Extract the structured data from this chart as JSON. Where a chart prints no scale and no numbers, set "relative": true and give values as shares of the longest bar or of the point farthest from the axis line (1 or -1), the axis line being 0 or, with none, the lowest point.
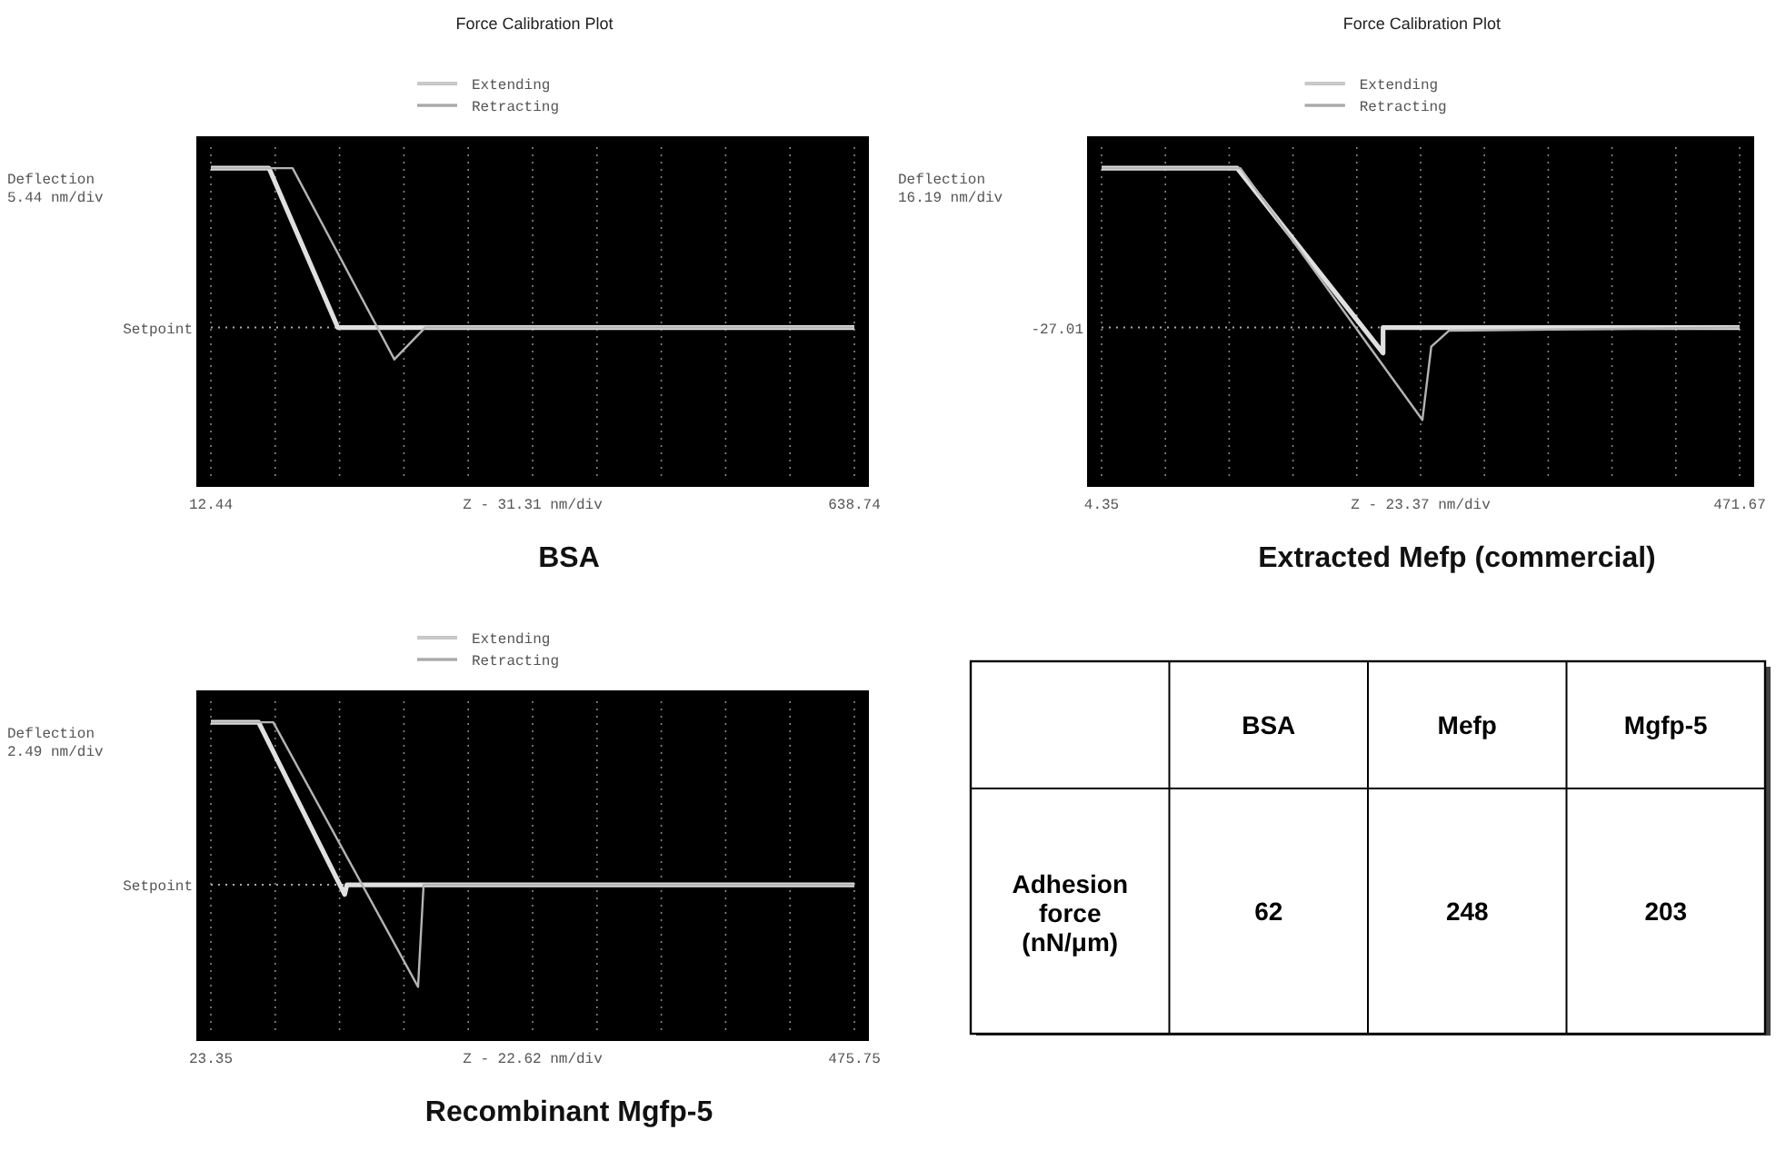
{
  "chart_data": [
    {
      "type": "line",
      "title": "Force Calibration Plot",
      "subtitle": "BSA",
      "xlabel": "Z - 31.31 nm/div",
      "ylabel": "Deflection\n5.44 nm/div",
      "relative": true,
      "legend": "top",
      "grid": "x",
      "xlim": [
        12.44,
        638.74
      ],
      "xticks": [
        12.44,
        {
          "value": 75.07,
          "label": null
        },
        {
          "value": 137.7,
          "label": null
        },
        {
          "value": 200.33,
          "label": null
        },
        {
          "value": 262.96,
          "label": null
        },
        {
          "value": 325.59,
          "label": null
        },
        {
          "value": 388.22,
          "label": null
        },
        {
          "value": 450.85,
          "label": null
        },
        {
          "value": 513.48,
          "label": null
        },
        {
          "value": 576.11,
          "label": null
        },
        638.74
      ],
      "ref_lines": [
        {
          "axis": "y",
          "value": 0.5,
          "label": "Setpoint",
          "line_style": "dotted"
        }
      ],
      "series": [
        {
          "name": "Extending",
          "color": "#e0e0e0",
          "x": [
            12.44,
            69,
            136,
            638.74
          ],
          "values": [
            1,
            1,
            0.5,
            0.5
          ]
        },
        {
          "name": "Retracting",
          "color": "#b4b4b4",
          "x": [
            12.44,
            92,
            191,
            221,
            638.74
          ],
          "values": [
            1,
            1,
            0.4,
            0.5,
            0.5
          ]
        }
      ]
    },
    {
      "type": "line",
      "title": "Force Calibration Plot",
      "subtitle": "Extracted Mefp (commercial)",
      "xlabel": "Z - 23.37 nm/div",
      "ylabel": "Deflection\n16.19 nm/div",
      "relative": true,
      "legend": "top",
      "grid": "x",
      "xlim": [
        4.35,
        471.67
      ],
      "xticks": [
        4.35,
        {
          "value": 51.08,
          "label": null
        },
        {
          "value": 97.81,
          "label": null
        },
        {
          "value": 144.55,
          "label": null
        },
        {
          "value": 191.28,
          "label": null
        },
        {
          "value": 238.01,
          "label": null
        },
        {
          "value": 284.74,
          "label": null
        },
        {
          "value": 331.47,
          "label": null
        },
        {
          "value": 378.21,
          "label": null
        },
        {
          "value": 424.94,
          "label": null
        },
        471.67
      ],
      "ref_lines": [
        {
          "axis": "y",
          "value": 0.5,
          "line_style": "dotted"
        }
      ],
      "annotations": [
        "-27.01"
      ],
      "series": [
        {
          "name": "Extending",
          "color": "#e0e0e0",
          "x": [
            4.35,
            103.7,
            210.5,
            210.5,
            471.67
          ],
          "values": [
            1,
            1,
            0.42,
            0.5,
            0.5
          ]
        },
        {
          "name": "Retracting",
          "color": "#b4b4b4",
          "x": [
            4.35,
            106,
            239.3,
            245.8,
            258.7,
            471.67
          ],
          "values": [
            1,
            1,
            0.21,
            0.44,
            0.49,
            0.5
          ]
        }
      ]
    },
    {
      "type": "line",
      "subtitle": "Recombinant Mgfp-5",
      "xlabel": "Z - 22.62 nm/div",
      "ylabel": "Deflection\n2.49 nm/div",
      "relative": true,
      "legend": "top",
      "grid": "x",
      "xlim": [
        23.35,
        475.75
      ],
      "xticks": [
        23.35,
        {
          "value": 68.59,
          "label": null
        },
        {
          "value": 113.83,
          "label": null
        },
        {
          "value": 159.07,
          "label": null
        },
        {
          "value": 204.31,
          "label": null
        },
        {
          "value": 249.55,
          "label": null
        },
        {
          "value": 294.79,
          "label": null
        },
        {
          "value": 340.03,
          "label": null
        },
        {
          "value": 385.27,
          "label": null
        },
        {
          "value": 430.51,
          "label": null
        },
        475.75
      ],
      "ref_lines": [
        {
          "axis": "y",
          "value": 0.49,
          "label": "Setpoint",
          "line_style": "dotted"
        }
      ],
      "series": [
        {
          "name": "Extending",
          "color": "#e0e0e0",
          "x": [
            23.35,
            56.9,
            117.4,
            119,
            475.75
          ],
          "values": [
            1,
            1,
            0.46,
            0.49,
            0.49
          ]
        },
        {
          "name": "Retracting",
          "color": "#b4b4b4",
          "x": [
            23.35,
            67.2,
            169,
            172.9,
            475.75
          ],
          "values": [
            1,
            1,
            0.17,
            0.49,
            0.49
          ]
        }
      ]
    },
    {
      "type": "other",
      "ylabel": "Adhesion force (nN/μm)",
      "categories": [
        "BSA",
        "Mefp",
        "Mgfp-5"
      ],
      "values": [
        62,
        248,
        203
      ],
      "data_labels": true
    }
  ]
}
